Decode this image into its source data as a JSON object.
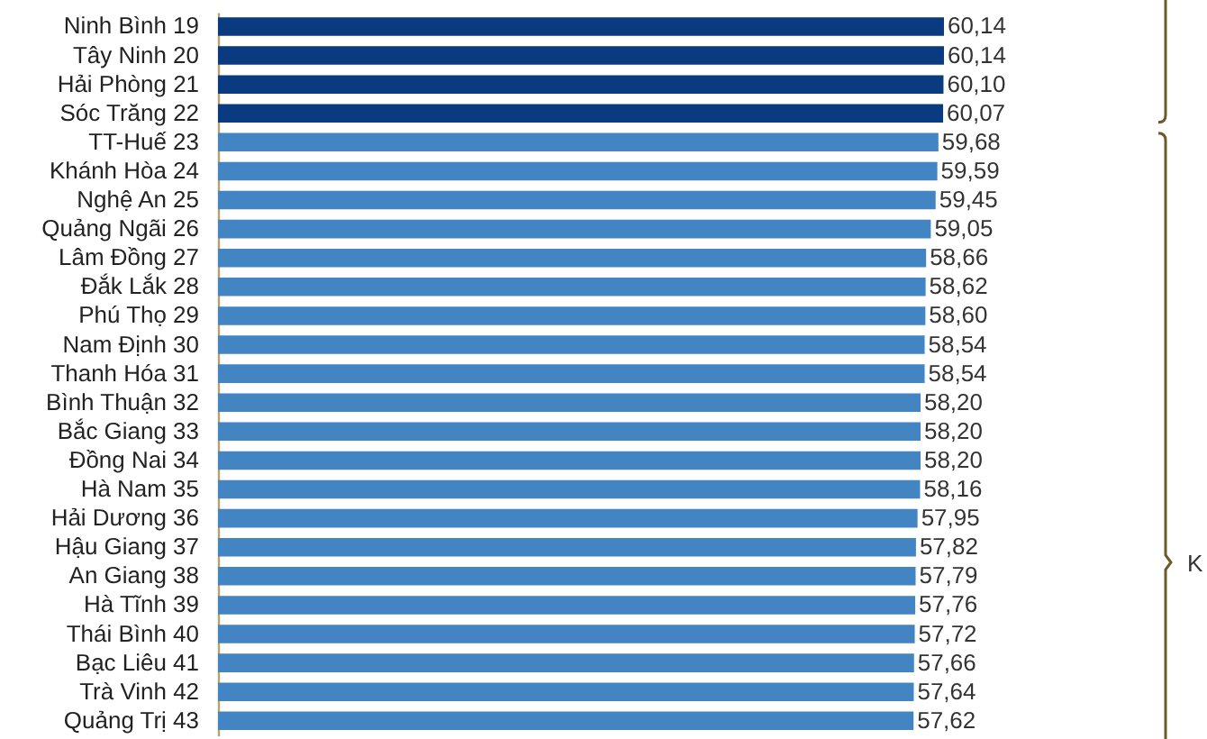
{
  "chart_data": {
    "type": "bar",
    "orientation": "horizontal",
    "tick_labels": "y",
    "categories": [
      "Ninh Bình 19",
      "Tây Ninh 20",
      "Hải Phòng 21",
      "Sóc Trăng 22",
      "TT-Huế 23",
      "Khánh Hòa 24",
      "Nghệ An 25",
      "Quảng Ngãi 26",
      "Lâm Đồng 27",
      "Đắk Lắk 28",
      "Phú Thọ 29",
      "Nam Định 30",
      "Thanh Hóa 31",
      "Bình Thuận 32",
      "Bắc Giang 33",
      "Đồng Nai 34",
      "Hà Nam 35",
      "Hải Dương 36",
      "Hậu Giang 37",
      "An Giang 38",
      "Hà Tĩnh 39",
      "Thái Bình 40",
      "Bạc Liêu 41",
      "Trà Vinh 42",
      "Quảng Trị 43"
    ],
    "values": [
      60.14,
      60.14,
      60.1,
      60.07,
      59.68,
      59.59,
      59.45,
      59.05,
      58.66,
      58.62,
      58.6,
      58.54,
      58.54,
      58.2,
      58.2,
      58.2,
      58.16,
      57.95,
      57.82,
      57.79,
      57.76,
      57.72,
      57.66,
      57.64,
      57.62
    ],
    "value_labels": [
      "60,14",
      "60,14",
      "60,10",
      "60,07",
      "59,68",
      "59,59",
      "59,45",
      "59,05",
      "58,66",
      "58,62",
      "58,60",
      "58,54",
      "58,54",
      "58,20",
      "58,20",
      "58,20",
      "58,16",
      "57,95",
      "57,82",
      "57,79",
      "57,76",
      "57,72",
      "57,66",
      "57,64",
      "57,62"
    ],
    "colors": [
      "#0a3a80",
      "#0a3a80",
      "#0a3a80",
      "#0a3a80",
      "#4285c2",
      "#4285c2",
      "#4285c2",
      "#4285c2",
      "#4285c2",
      "#4285c2",
      "#4285c2",
      "#4285c2",
      "#4285c2",
      "#4285c2",
      "#4285c2",
      "#4285c2",
      "#4285c2",
      "#4285c2",
      "#4285c2",
      "#4285c2",
      "#4285c2",
      "#4285c2",
      "#4285c2",
      "#4285c2",
      "#4285c2"
    ],
    "annotations": [
      "K"
    ]
  }
}
